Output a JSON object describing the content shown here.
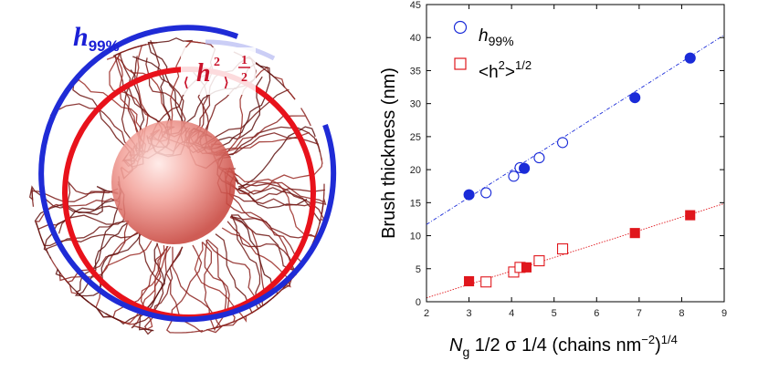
{
  "illustration": {
    "outer_label": {
      "main": "h",
      "sub": "99%"
    },
    "inner_label": {
      "main": "h",
      "sup": "2",
      "num": "1",
      "den": "2"
    }
  },
  "chart_data": {
    "type": "scatter",
    "title": "",
    "xlabel": {
      "base": "N",
      "sub": "g",
      "rest": " 1/2 σ 1/4 (chains nm",
      "sup": "−2",
      "end": ")",
      "sup2": "1/4"
    },
    "ylabel": "Brush thickness (nm)",
    "xlim": [
      2,
      9
    ],
    "ylim": [
      0,
      45
    ],
    "xticks": [
      2,
      3,
      4,
      5,
      6,
      7,
      8,
      9
    ],
    "yticks": [
      0,
      5,
      10,
      15,
      20,
      25,
      30,
      35,
      40,
      45
    ],
    "legend_position": "top-left",
    "series": [
      {
        "name": "h99%",
        "legend": {
          "main": "h",
          "sub": "99%"
        },
        "color": "#1a2bd8",
        "marker": "circle",
        "open_points": [
          [
            3.4,
            16.5
          ],
          [
            4.05,
            19.0
          ],
          [
            4.2,
            20.3
          ],
          [
            4.65,
            21.8
          ],
          [
            5.2,
            24.1
          ]
        ],
        "filled_points": [
          [
            3.0,
            16.2
          ],
          [
            4.3,
            20.2
          ],
          [
            6.9,
            30.9
          ],
          [
            8.2,
            36.9
          ]
        ],
        "fit": {
          "slope": 4.1,
          "intercept": 3.5,
          "style": "dash-dot"
        }
      },
      {
        "name": "<h2>1/2",
        "legend": {
          "pre": "<h",
          "sup": "2",
          "mid": ">",
          "sup2": "1/2"
        },
        "color": "#e0171d",
        "marker": "square",
        "open_points": [
          [
            3.4,
            3.0
          ],
          [
            4.05,
            4.5
          ],
          [
            4.2,
            5.2
          ],
          [
            4.65,
            6.2
          ],
          [
            5.2,
            8.0
          ]
        ],
        "filled_points": [
          [
            3.0,
            3.1
          ],
          [
            4.35,
            5.2
          ],
          [
            6.9,
            10.4
          ],
          [
            8.2,
            13.1
          ]
        ],
        "fit": {
          "slope": 2.04,
          "intercept": -3.5,
          "style": "dotted"
        }
      }
    ]
  }
}
